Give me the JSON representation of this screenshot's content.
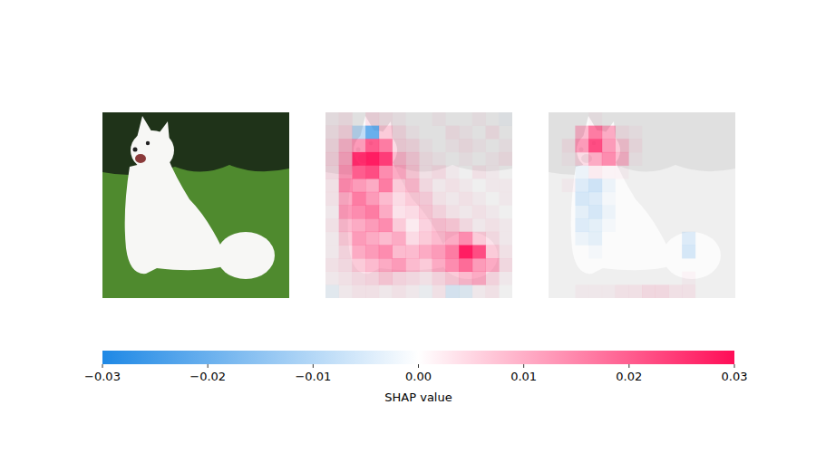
{
  "chart_data": {
    "type": "heatmap",
    "panels": [
      {
        "cells": [
          [
            0.001,
            0.002,
            0,
            0.003,
            0.002,
            0.001,
            0,
            0,
            0.001,
            0,
            0,
            0.001,
            0,
            -0.001
          ],
          [
            0.002,
            0.004,
            -0.008,
            -0.02,
            0.006,
            0.003,
            0.001,
            0,
            0,
            0.002,
            0.001,
            0,
            0.002,
            0
          ],
          [
            0.003,
            0.008,
            0.012,
            0.02,
            0.016,
            0.004,
            0.003,
            0.001,
            0,
            0.001,
            0.002,
            0.001,
            0,
            0.001
          ],
          [
            0.004,
            0.01,
            0.026,
            0.028,
            0.024,
            0.008,
            0.005,
            0.002,
            0.001,
            0,
            0.001,
            0,
            0.001,
            0.002
          ],
          [
            0.003,
            0.012,
            0.02,
            0.022,
            0.014,
            0.01,
            0.006,
            0.002,
            0.003,
            0.001,
            0,
            0.002,
            0.001,
            0
          ],
          [
            0.002,
            0.014,
            0.012,
            0.01,
            0.016,
            0.006,
            0.008,
            0.003,
            0.001,
            0.002,
            0.001,
            0,
            0.001,
            0.001
          ],
          [
            0.002,
            0.01,
            0.016,
            0.012,
            0.008,
            0.004,
            0.006,
            0.005,
            0.002,
            0.001,
            0.002,
            0.001,
            0,
            0.001
          ],
          [
            0.001,
            0.012,
            0.014,
            0.016,
            0.01,
            0.003,
            0.004,
            0.006,
            0.004,
            0.002,
            0.001,
            0.002,
            0.001,
            0
          ],
          [
            0.002,
            0.008,
            0.01,
            0.012,
            0.014,
            0.006,
            0.002,
            0.005,
            0.007,
            0.006,
            0.003,
            0.001,
            0.002,
            0.001
          ],
          [
            0.001,
            0.006,
            0.012,
            0.01,
            0.008,
            0.01,
            0.004,
            0.006,
            0.008,
            0.01,
            0.014,
            0.006,
            0.003,
            0.001
          ],
          [
            0.001,
            0.004,
            0.01,
            0.012,
            0.014,
            0.008,
            0.008,
            0.01,
            0.012,
            0.016,
            0.028,
            0.022,
            0.006,
            0.002
          ],
          [
            0.002,
            0.003,
            0.006,
            0.008,
            0.01,
            0.012,
            0.008,
            0.006,
            0.01,
            0.014,
            0.018,
            0.012,
            0.01,
            0.003
          ],
          [
            0.001,
            0.002,
            0.003,
            0.004,
            0.006,
            0.004,
            0.003,
            0.002,
            0.004,
            0.006,
            0.008,
            0.01,
            0.004,
            0.001
          ],
          [
            -0.002,
            0.001,
            0.002,
            0.002,
            0.001,
            0.002,
            0.001,
            -0.001,
            0.002,
            -0.004,
            -0.003,
            0.001,
            0.002,
            0
          ]
        ]
      },
      {
        "cells": [
          [
            0,
            0,
            0,
            0.001,
            0,
            0,
            0,
            0,
            0,
            0,
            0,
            0,
            0,
            0
          ],
          [
            0,
            0,
            0.008,
            0.016,
            0.01,
            0.002,
            0.001,
            0,
            0,
            0,
            0,
            0,
            0,
            0
          ],
          [
            0,
            0.002,
            0.012,
            0.022,
            0.012,
            0.006,
            0.002,
            0,
            0,
            0,
            0,
            0,
            0,
            0
          ],
          [
            0,
            0.001,
            0.004,
            0.01,
            0.014,
            0.008,
            0.001,
            0,
            0,
            0,
            0,
            0,
            0,
            0
          ],
          [
            0,
            0,
            -0.002,
            0.002,
            0.001,
            0.001,
            0,
            0,
            0,
            0,
            0,
            0,
            0,
            0
          ],
          [
            0,
            0.001,
            -0.004,
            -0.006,
            -0.002,
            0,
            0,
            0,
            0,
            0,
            0,
            0,
            0,
            0
          ],
          [
            0,
            0,
            -0.005,
            -0.004,
            -0.001,
            0,
            0,
            0,
            0,
            0,
            0,
            0,
            0,
            0
          ],
          [
            0,
            0,
            -0.003,
            -0.005,
            -0.002,
            0,
            0,
            0,
            0,
            0,
            0,
            0,
            0,
            0
          ],
          [
            0,
            0,
            -0.004,
            -0.003,
            -0.001,
            0,
            0,
            0,
            0,
            0,
            0,
            0,
            0,
            0
          ],
          [
            0,
            0,
            -0.002,
            -0.003,
            0,
            0,
            0,
            0,
            0,
            0,
            -0.004,
            0,
            0,
            0
          ],
          [
            0,
            0,
            0,
            -0.001,
            0,
            0,
            0,
            0,
            0,
            0,
            -0.005,
            0,
            0,
            0
          ],
          [
            0,
            0,
            0,
            0,
            0,
            0,
            0,
            0,
            0,
            0,
            0,
            0,
            0,
            0
          ],
          [
            0,
            0,
            0,
            0,
            0,
            0,
            0,
            0,
            0,
            0,
            0.001,
            0,
            0,
            0
          ],
          [
            0,
            0,
            0.001,
            0.001,
            0.001,
            0.002,
            0.002,
            0.003,
            0.003,
            0.002,
            0.002,
            0,
            0,
            0
          ]
        ]
      }
    ],
    "colorbar": {
      "range": [
        -0.03,
        0.03
      ],
      "ticks": [
        {
          "value": -0.03,
          "label": "−0.03"
        },
        {
          "value": -0.02,
          "label": "−0.02"
        },
        {
          "value": -0.01,
          "label": "−0.01"
        },
        {
          "value": 0,
          "label": "0.00"
        },
        0.01,
        0.02,
        0.03
      ],
      "label": "SHAP value"
    }
  }
}
